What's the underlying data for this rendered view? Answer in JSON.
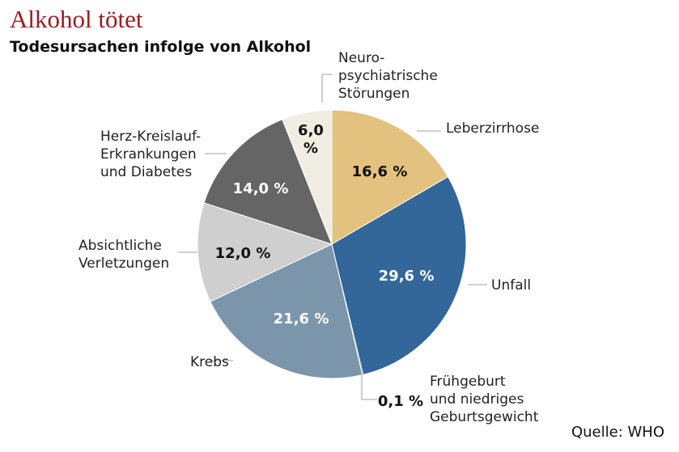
{
  "header": {
    "title": "Alkohol tötet",
    "subtitle": "Todesursachen infolge von Alkohol"
  },
  "source": "Quelle: WHO",
  "chart_data": {
    "type": "pie",
    "title": "Alkohol tötet",
    "subtitle": "Todesursachen infolge von Alkohol",
    "start": "12 o'clock, clockwise",
    "slices": [
      {
        "name": "Leberzirrhose",
        "label_lines": [
          "Leberzirrhose"
        ],
        "value": 16.6,
        "value_text": "16,6 %",
        "color": "#e2c27e",
        "text_color": "#111111"
      },
      {
        "name": "Unfall",
        "label_lines": [
          "Unfall"
        ],
        "value": 29.6,
        "value_text": "29,6 %",
        "color": "#336699",
        "text_color": "#ffffff"
      },
      {
        "name": "Frühgeburt und niedriges Geburtsgewicht",
        "label_lines": [
          "Frühgeburt",
          "und niedriges",
          "Geburtsgewicht"
        ],
        "value": 0.1,
        "value_text": "0,1 %",
        "color": "#111111",
        "text_color": "#111111"
      },
      {
        "name": "Krebs",
        "label_lines": [
          "Krebs"
        ],
        "value": 21.6,
        "value_text": "21,6 %",
        "color": "#7b95ab",
        "text_color": "#ffffff"
      },
      {
        "name": "Absichtliche Verletzungen",
        "label_lines": [
          "Absichtliche",
          "Verletzungen"
        ],
        "value": 12.0,
        "value_text": "12,0 %",
        "color": "#cfcfcf",
        "text_color": "#111111"
      },
      {
        "name": "Herz-Kreislauf-Erkrankungen und Diabetes",
        "label_lines": [
          "Herz-Kreislauf-",
          "Erkrankungen",
          "und Diabetes"
        ],
        "value": 14.0,
        "value_text": "14,0 %",
        "color": "#656565",
        "text_color": "#ffffff"
      },
      {
        "name": "Neuropsychiatrische Störungen",
        "label_lines": [
          "Neuro-",
          "psychiatrische",
          "Störungen"
        ],
        "value": 6.0,
        "value_text_lines": [
          "6,0",
          "%"
        ],
        "color": "#f2ede2",
        "text_color": "#111111"
      }
    ]
  }
}
